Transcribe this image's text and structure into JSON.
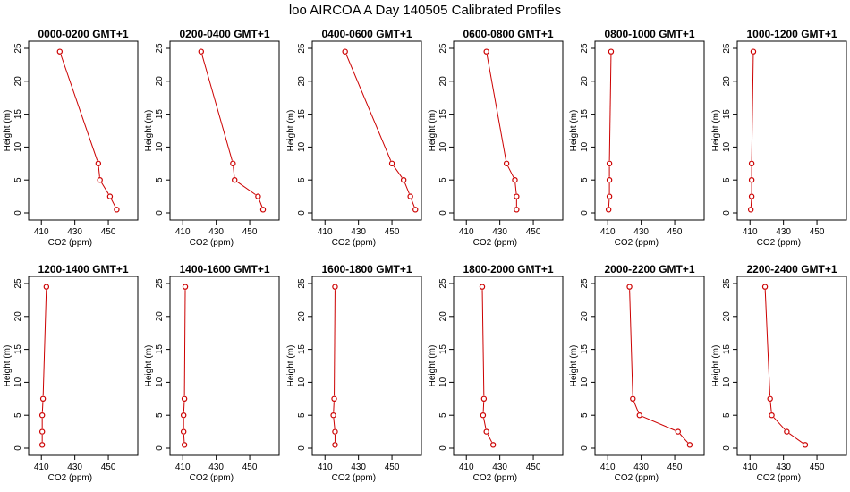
{
  "figure": {
    "title": "loo AIRCOA A  Day 140505  Calibrated Profiles"
  },
  "chart_data": [
    {
      "type": "line",
      "title": "0000-0200 GMT+1",
      "xlabel": "CO2 (ppm)",
      "ylabel": "Height (m)",
      "xlim": [
        405,
        465
      ],
      "ylim": [
        0,
        25
      ],
      "xticks": [
        410,
        430,
        450
      ],
      "yticks": [
        0,
        5,
        10,
        15,
        20,
        25
      ],
      "grid": false,
      "x": [
        455,
        451,
        445,
        444,
        421
      ],
      "y": [
        0.5,
        2.5,
        5,
        7.5,
        24.5
      ]
    },
    {
      "type": "line",
      "title": "0200-0400 GMT+1",
      "xlabel": "CO2 (ppm)",
      "ylabel": "Height (m)",
      "xlim": [
        405,
        465
      ],
      "ylim": [
        0,
        25
      ],
      "xticks": [
        410,
        430,
        450
      ],
      "yticks": [
        0,
        5,
        10,
        15,
        20,
        25
      ],
      "grid": false,
      "x": [
        458,
        455,
        441,
        440,
        421
      ],
      "y": [
        0.5,
        2.5,
        5,
        7.5,
        24.5
      ]
    },
    {
      "type": "line",
      "title": "0400-0600 GMT+1",
      "xlabel": "CO2 (ppm)",
      "ylabel": "Height (m)",
      "xlim": [
        405,
        465
      ],
      "ylim": [
        0,
        25
      ],
      "xticks": [
        410,
        430,
        450
      ],
      "yticks": [
        0,
        5,
        10,
        15,
        20,
        25
      ],
      "grid": false,
      "x": [
        464,
        461,
        457,
        450,
        422
      ],
      "y": [
        0.5,
        2.5,
        5,
        7.5,
        24.5
      ]
    },
    {
      "type": "line",
      "title": "0600-0800 GMT+1",
      "xlabel": "CO2 (ppm)",
      "ylabel": "Height (m)",
      "xlim": [
        405,
        465
      ],
      "ylim": [
        0,
        25
      ],
      "xticks": [
        410,
        430,
        450
      ],
      "yticks": [
        0,
        5,
        10,
        15,
        20,
        25
      ],
      "grid": false,
      "x": [
        440,
        440,
        439,
        434,
        422
      ],
      "y": [
        0.5,
        2.5,
        5,
        7.5,
        24.5
      ]
    },
    {
      "type": "line",
      "title": "0800-1000 GMT+1",
      "xlabel": "CO2 (ppm)",
      "ylabel": "Height (m)",
      "xlim": [
        405,
        465
      ],
      "ylim": [
        0,
        25
      ],
      "xticks": [
        410,
        430,
        450
      ],
      "yticks": [
        0,
        5,
        10,
        15,
        20,
        25
      ],
      "grid": false,
      "x": [
        410.5,
        411,
        411,
        411,
        412
      ],
      "y": [
        0.5,
        2.5,
        5,
        7.5,
        24.5
      ]
    },
    {
      "type": "line",
      "title": "1000-1200 GMT+1",
      "xlabel": "CO2 (ppm)",
      "ylabel": "Height (m)",
      "xlim": [
        405,
        465
      ],
      "ylim": [
        0,
        25
      ],
      "xticks": [
        410,
        430,
        450
      ],
      "yticks": [
        0,
        5,
        10,
        15,
        20,
        25
      ],
      "grid": false,
      "x": [
        410.5,
        411,
        411,
        411,
        412
      ],
      "y": [
        0.5,
        2.5,
        5,
        7.5,
        24.5
      ]
    },
    {
      "type": "line",
      "title": "1200-1400 GMT+1",
      "xlabel": "CO2 (ppm)",
      "ylabel": "Height (m)",
      "xlim": [
        405,
        465
      ],
      "ylim": [
        0,
        25
      ],
      "xticks": [
        410,
        430,
        450
      ],
      "yticks": [
        0,
        5,
        10,
        15,
        20,
        25
      ],
      "grid": false,
      "x": [
        410.5,
        410.5,
        410.5,
        411,
        413
      ],
      "y": [
        0.5,
        2.5,
        5,
        7.5,
        24.5
      ]
    },
    {
      "type": "line",
      "title": "1400-1600 GMT+1",
      "xlabel": "CO2 (ppm)",
      "ylabel": "Height (m)",
      "xlim": [
        405,
        465
      ],
      "ylim": [
        0,
        25
      ],
      "xticks": [
        410,
        430,
        450
      ],
      "yticks": [
        0,
        5,
        10,
        15,
        20,
        25
      ],
      "grid": false,
      "x": [
        411,
        410.5,
        410.5,
        411,
        411.5
      ],
      "y": [
        0.5,
        2.5,
        5,
        7.5,
        24.5
      ]
    },
    {
      "type": "line",
      "title": "1600-1800 GMT+1",
      "xlabel": "CO2 (ppm)",
      "ylabel": "Height (m)",
      "xlim": [
        405,
        465
      ],
      "ylim": [
        0,
        25
      ],
      "xticks": [
        410,
        430,
        450
      ],
      "yticks": [
        0,
        5,
        10,
        15,
        20,
        25
      ],
      "grid": false,
      "x": [
        416,
        416,
        415,
        415.5,
        416
      ],
      "y": [
        0.5,
        2.5,
        5,
        7.5,
        24.5
      ]
    },
    {
      "type": "line",
      "title": "1800-2000 GMT+1",
      "xlabel": "CO2 (ppm)",
      "ylabel": "Height (m)",
      "xlim": [
        405,
        465
      ],
      "ylim": [
        0,
        25
      ],
      "xticks": [
        410,
        430,
        450
      ],
      "yticks": [
        0,
        5,
        10,
        15,
        20,
        25
      ],
      "grid": false,
      "x": [
        426,
        422,
        420,
        420.5,
        419.5
      ],
      "y": [
        0.5,
        2.5,
        5,
        7.5,
        24.5
      ]
    },
    {
      "type": "line",
      "title": "2000-2200 GMT+1",
      "xlabel": "CO2 (ppm)",
      "ylabel": "Height (m)",
      "xlim": [
        405,
        465
      ],
      "ylim": [
        0,
        25
      ],
      "xticks": [
        410,
        430,
        450
      ],
      "yticks": [
        0,
        5,
        10,
        15,
        20,
        25
      ],
      "grid": false,
      "x": [
        459,
        452,
        429,
        425,
        423
      ],
      "y": [
        0.5,
        2.5,
        5,
        7.5,
        24.5
      ]
    },
    {
      "type": "line",
      "title": "2200-2400 GMT+1",
      "xlabel": "CO2 (ppm)",
      "ylabel": "Height (m)",
      "xlim": [
        405,
        465
      ],
      "ylim": [
        0,
        25
      ],
      "xticks": [
        410,
        430,
        450
      ],
      "yticks": [
        0,
        5,
        10,
        15,
        20,
        25
      ],
      "grid": false,
      "x": [
        443,
        432,
        423,
        422,
        419
      ],
      "y": [
        0.5,
        2.5,
        5,
        7.5,
        24.5
      ]
    }
  ]
}
